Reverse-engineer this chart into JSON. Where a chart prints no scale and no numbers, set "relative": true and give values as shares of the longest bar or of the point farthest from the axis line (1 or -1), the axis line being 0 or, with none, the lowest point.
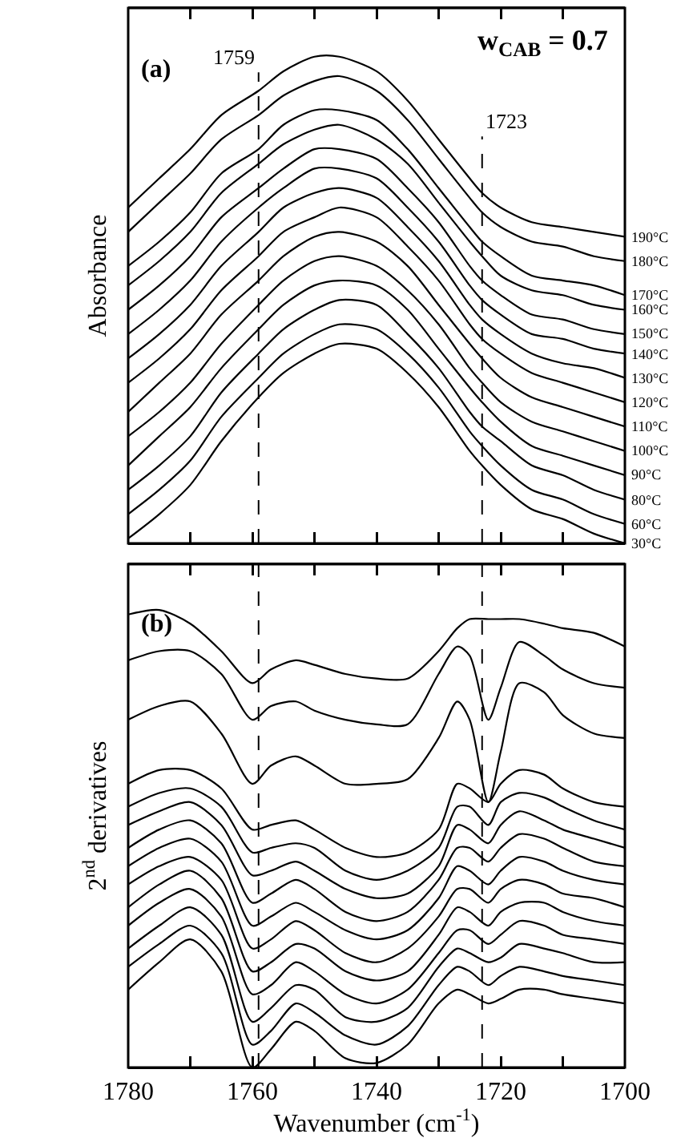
{
  "chart_data": [
    {
      "type": "line",
      "relative": true,
      "ylabel": "Absorbance",
      "annotations": [
        "(a)",
        "w$_{CAB}$ = 0.7"
      ],
      "x": [
        1780,
        1775,
        1770,
        1765,
        1759,
        1755,
        1750,
        1746,
        1740,
        1735,
        1730,
        1725,
        1723,
        1720,
        1715,
        1710,
        1705,
        1700
      ],
      "xlim": [
        1780,
        1700
      ],
      "xticks": [
        {
          "value": 1780,
          "label": null
        },
        {
          "value": 1770,
          "label": null
        },
        {
          "value": 1760,
          "label": null
        },
        {
          "value": 1750,
          "label": null
        },
        {
          "value": 1740,
          "label": null
        },
        {
          "value": 1730,
          "label": null
        },
        {
          "value": 1720,
          "label": null
        },
        {
          "value": 1710,
          "label": null
        },
        {
          "value": 1700,
          "label": null
        }
      ],
      "tick_labels": false,
      "ref_lines": [
        {
          "axis": "x",
          "value": 1759,
          "label": "1759",
          "line_style": "dashed"
        },
        {
          "axis": "x",
          "value": 1723,
          "label": "1723",
          "line_style": "dashed"
        }
      ],
      "series": [
        {
          "name": "190°C",
          "color": "#000000",
          "values": [
            0.69,
            0.75,
            0.81,
            0.88,
            0.93,
            0.97,
            1.0,
            1.0,
            0.97,
            0.91,
            0.83,
            0.75,
            0.72,
            0.69,
            0.66,
            0.65,
            0.64,
            0.63
          ]
        },
        {
          "name": "180°C",
          "color": "#000000",
          "values": [
            0.64,
            0.7,
            0.76,
            0.83,
            0.88,
            0.92,
            0.95,
            0.96,
            0.93,
            0.87,
            0.79,
            0.71,
            0.68,
            0.65,
            0.62,
            0.61,
            0.59,
            0.58
          ]
        },
        {
          "name": "170°C",
          "color": "#000000",
          "values": [
            0.57,
            0.62,
            0.68,
            0.76,
            0.81,
            0.86,
            0.89,
            0.89,
            0.87,
            0.81,
            0.73,
            0.65,
            0.62,
            0.59,
            0.55,
            0.54,
            0.53,
            0.51
          ]
        },
        {
          "name": "160°C",
          "color": "#000000",
          "values": [
            0.53,
            0.58,
            0.64,
            0.72,
            0.78,
            0.82,
            0.85,
            0.86,
            0.83,
            0.78,
            0.7,
            0.62,
            0.59,
            0.55,
            0.52,
            0.51,
            0.49,
            0.48
          ]
        },
        {
          "name": "150°C",
          "color": "#000000",
          "values": [
            0.48,
            0.53,
            0.59,
            0.67,
            0.73,
            0.77,
            0.81,
            0.81,
            0.79,
            0.73,
            0.66,
            0.57,
            0.54,
            0.51,
            0.47,
            0.46,
            0.44,
            0.43
          ]
        },
        {
          "name": "140°C",
          "color": "#000000",
          "values": [
            0.43,
            0.48,
            0.54,
            0.62,
            0.69,
            0.73,
            0.77,
            0.77,
            0.75,
            0.69,
            0.62,
            0.53,
            0.5,
            0.47,
            0.43,
            0.42,
            0.4,
            0.39
          ]
        },
        {
          "name": "130°C",
          "color": "#000000",
          "values": [
            0.38,
            0.43,
            0.49,
            0.57,
            0.64,
            0.69,
            0.72,
            0.73,
            0.71,
            0.65,
            0.58,
            0.49,
            0.46,
            0.43,
            0.39,
            0.37,
            0.36,
            0.34
          ]
        },
        {
          "name": "120°C",
          "color": "#000000",
          "values": [
            0.33,
            0.38,
            0.44,
            0.52,
            0.59,
            0.64,
            0.67,
            0.69,
            0.67,
            0.61,
            0.54,
            0.45,
            0.42,
            0.39,
            0.35,
            0.33,
            0.31,
            0.29
          ]
        },
        {
          "name": "110°C",
          "color": "#000000",
          "values": [
            0.27,
            0.33,
            0.39,
            0.47,
            0.54,
            0.59,
            0.63,
            0.64,
            0.62,
            0.57,
            0.49,
            0.41,
            0.38,
            0.34,
            0.3,
            0.28,
            0.26,
            0.24
          ]
        },
        {
          "name": "100°C",
          "color": "#000000",
          "values": [
            0.22,
            0.27,
            0.33,
            0.41,
            0.49,
            0.54,
            0.58,
            0.59,
            0.57,
            0.52,
            0.45,
            0.36,
            0.33,
            0.29,
            0.25,
            0.23,
            0.21,
            0.19
          ]
        },
        {
          "name": "90°C",
          "color": "#000000",
          "values": [
            0.16,
            0.22,
            0.28,
            0.36,
            0.44,
            0.49,
            0.53,
            0.54,
            0.53,
            0.48,
            0.4,
            0.32,
            0.29,
            0.25,
            0.2,
            0.18,
            0.16,
            0.14
          ]
        },
        {
          "name": "80°C",
          "color": "#000000",
          "values": [
            0.11,
            0.16,
            0.22,
            0.31,
            0.39,
            0.44,
            0.48,
            0.5,
            0.49,
            0.43,
            0.36,
            0.27,
            0.24,
            0.21,
            0.16,
            0.14,
            0.11,
            0.09
          ]
        },
        {
          "name": "60°C",
          "color": "#000000",
          "values": [
            0.06,
            0.11,
            0.17,
            0.26,
            0.34,
            0.39,
            0.43,
            0.45,
            0.44,
            0.39,
            0.32,
            0.23,
            0.2,
            0.16,
            0.11,
            0.09,
            0.06,
            0.04
          ]
        },
        {
          "name": "30°C",
          "color": "#000000",
          "values": [
            0.01,
            0.06,
            0.12,
            0.21,
            0.3,
            0.35,
            0.39,
            0.41,
            0.4,
            0.35,
            0.28,
            0.19,
            0.16,
            0.12,
            0.07,
            0.05,
            0.02,
            0
          ]
        }
      ]
    },
    {
      "type": "line",
      "relative": true,
      "ylabel": "2$^{nd}$ derivatives",
      "xlabel": "Wavenumber (cm$^{-1}$)",
      "annotations": [
        "(b)"
      ],
      "x": [
        1780,
        1775,
        1770,
        1765,
        1760,
        1757,
        1753,
        1750,
        1745,
        1740,
        1735,
        1730,
        1727,
        1725,
        1722,
        1720,
        1717,
        1713,
        1710,
        1705,
        1700
      ],
      "xlim": [
        1780,
        1700
      ],
      "xticks": [
        1780,
        {
          "value": 1770,
          "label": null
        },
        1760,
        {
          "value": 1750,
          "label": null
        },
        1740,
        {
          "value": 1730,
          "label": null
        },
        1720,
        {
          "value": 1710,
          "label": null
        },
        1700
      ],
      "tick_labels": "x",
      "ref_lines": [
        {
          "axis": "x",
          "value": 1759,
          "line_style": "dashed"
        },
        {
          "axis": "x",
          "value": 1723,
          "line_style": "dashed"
        }
      ],
      "series": [
        {
          "color": "#000000",
          "values": [
            0.99,
            1.0,
            0.97,
            0.91,
            0.84,
            0.87,
            0.89,
            0.88,
            0.86,
            0.85,
            0.85,
            0.91,
            0.96,
            0.98,
            0.98,
            0.98,
            0.98,
            0.97,
            0.96,
            0.95,
            0.92
          ]
        },
        {
          "color": "#000000",
          "values": [
            0.89,
            0.91,
            0.91,
            0.86,
            0.76,
            0.79,
            0.8,
            0.78,
            0.76,
            0.75,
            0.75,
            0.86,
            0.92,
            0.9,
            0.76,
            0.83,
            0.93,
            0.9,
            0.87,
            0.84,
            0.83
          ]
        },
        {
          "color": "#000000",
          "values": [
            0.76,
            0.79,
            0.8,
            0.73,
            0.62,
            0.66,
            0.68,
            0.66,
            0.62,
            0.62,
            0.63,
            0.72,
            0.8,
            0.76,
            0.58,
            0.69,
            0.84,
            0.82,
            0.77,
            0.73,
            0.72
          ]
        },
        {
          "color": "#000000",
          "values": [
            0.62,
            0.65,
            0.65,
            0.61,
            0.52,
            0.53,
            0.54,
            0.52,
            0.48,
            0.46,
            0.47,
            0.52,
            0.62,
            0.61,
            0.58,
            0.62,
            0.65,
            0.64,
            0.61,
            0.58,
            0.57
          ]
        },
        {
          "color": "#000000",
          "values": [
            0.57,
            0.6,
            0.61,
            0.57,
            0.47,
            0.48,
            0.49,
            0.48,
            0.43,
            0.41,
            0.43,
            0.48,
            0.57,
            0.57,
            0.53,
            0.58,
            0.6,
            0.59,
            0.57,
            0.54,
            0.52
          ]
        },
        {
          "color": "#000000",
          "values": [
            0.53,
            0.56,
            0.58,
            0.53,
            0.42,
            0.43,
            0.45,
            0.43,
            0.39,
            0.37,
            0.38,
            0.44,
            0.53,
            0.52,
            0.49,
            0.53,
            0.56,
            0.54,
            0.52,
            0.5,
            0.48
          ]
        },
        {
          "color": "#000000",
          "values": [
            0.48,
            0.52,
            0.54,
            0.49,
            0.36,
            0.38,
            0.41,
            0.39,
            0.34,
            0.32,
            0.34,
            0.41,
            0.48,
            0.48,
            0.45,
            0.48,
            0.51,
            0.5,
            0.48,
            0.45,
            0.44
          ]
        },
        {
          "color": "#000000",
          "values": [
            0.44,
            0.48,
            0.5,
            0.45,
            0.31,
            0.33,
            0.36,
            0.34,
            0.3,
            0.28,
            0.3,
            0.37,
            0.44,
            0.43,
            0.4,
            0.43,
            0.46,
            0.45,
            0.43,
            0.41,
            0.4
          ]
        },
        {
          "color": "#000000",
          "values": [
            0.4,
            0.44,
            0.46,
            0.41,
            0.26,
            0.28,
            0.32,
            0.3,
            0.25,
            0.23,
            0.26,
            0.33,
            0.39,
            0.39,
            0.36,
            0.39,
            0.41,
            0.4,
            0.38,
            0.37,
            0.35
          ]
        },
        {
          "color": "#000000",
          "values": [
            0.35,
            0.4,
            0.43,
            0.37,
            0.21,
            0.23,
            0.27,
            0.26,
            0.21,
            0.19,
            0.21,
            0.29,
            0.35,
            0.34,
            0.31,
            0.34,
            0.36,
            0.36,
            0.34,
            0.32,
            0.31
          ]
        },
        {
          "color": "#000000",
          "values": [
            0.31,
            0.36,
            0.39,
            0.33,
            0.16,
            0.18,
            0.23,
            0.21,
            0.16,
            0.14,
            0.17,
            0.25,
            0.3,
            0.3,
            0.27,
            0.29,
            0.32,
            0.31,
            0.29,
            0.28,
            0.27
          ]
        },
        {
          "color": "#000000",
          "values": [
            0.26,
            0.31,
            0.35,
            0.29,
            0.1,
            0.13,
            0.18,
            0.17,
            0.11,
            0.1,
            0.13,
            0.22,
            0.26,
            0.25,
            0.23,
            0.24,
            0.27,
            0.26,
            0.25,
            0.23,
            0.23
          ]
        },
        {
          "color": "#000000",
          "values": [
            0.22,
            0.27,
            0.31,
            0.25,
            0.05,
            0.08,
            0.14,
            0.12,
            0.07,
            0.05,
            0.09,
            0.18,
            0.22,
            0.21,
            0.18,
            0.2,
            0.22,
            0.21,
            0.2,
            0.19,
            0.18
          ]
        },
        {
          "color": "#000000",
          "values": [
            0.17,
            0.23,
            0.28,
            0.21,
            0,
            0.04,
            0.1,
            0.08,
            0.02,
            0.01,
            0.05,
            0.14,
            0.17,
            0.16,
            0.14,
            0.15,
            0.17,
            0.17,
            0.16,
            0.15,
            0.14
          ]
        }
      ]
    }
  ]
}
